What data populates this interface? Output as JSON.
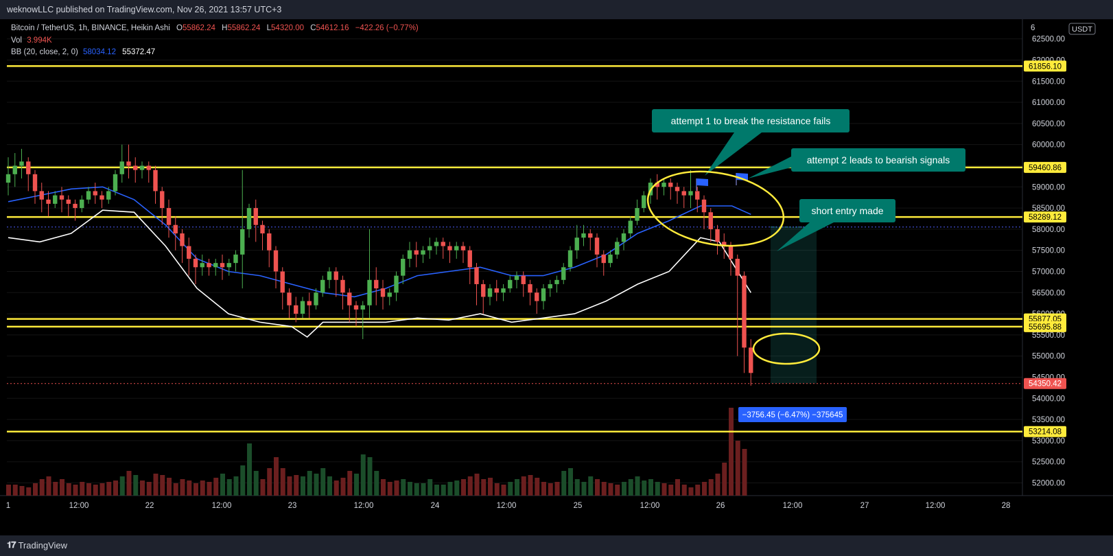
{
  "header": {
    "published": "weknowLLC published on TradingView.com, Nov 26, 2021 13:57 UTC+3"
  },
  "footer": {
    "brand": "TradingView"
  },
  "legend": {
    "symbol": "Bitcoin / TetherUS, 1h, BINANCE, Heikin Ashi",
    "o_label": "O",
    "o_value": "55862.24",
    "h_label": "H",
    "h_value": "55862.24",
    "l_label": "L",
    "l_value": "54320.00",
    "c_label": "C",
    "c_value": "54612.16",
    "change": "−422.26 (−0.77%)",
    "vol_label": "Vol",
    "vol_value": "3.994K",
    "bb_label": "BB (20, close, 2, 0)",
    "bb_value1": "58034.12",
    "bb_value2": "55372.47"
  },
  "currency": "USDT",
  "colors": {
    "background": "#000000",
    "up": "#26a69a",
    "up_body": "#4caf50",
    "down": "#ef5350",
    "bb_basis": "#2962ff",
    "bb_lower": "#ffffff",
    "level": "#ffeb3b",
    "teal_callout": "#00796b",
    "flag": "#2962ff"
  },
  "chart_data": {
    "type": "candlestick",
    "ylim": [
      51700,
      62900
    ],
    "y_ticks": [
      52000,
      52500,
      53000,
      53500,
      54000,
      54500,
      55000,
      55500,
      56000,
      56500,
      57000,
      57500,
      58000,
      58500,
      59000,
      59500,
      60000,
      60500,
      61000,
      61500,
      62000,
      62500
    ],
    "x_ticks": [
      "1",
      "12:00",
      "22",
      "12:00",
      "23",
      "12:00",
      "24",
      "12:00",
      "25",
      "12:00",
      "26",
      "12:00",
      "27",
      "12:00",
      "28"
    ],
    "levels": [
      "61856.10",
      "59460.86",
      "58289.12",
      "55877.05",
      "55695.88",
      "53214.08"
    ],
    "last_price": "54350.42",
    "annotations": [
      "attempt 1 to break the resistance fails",
      "attempt 2 leads to bearish signals",
      "short entry made"
    ],
    "measure_label": "−3756.45 (−6.47%) −375645",
    "candles": [
      [
        59100,
        59700,
        59300,
        58800
      ],
      [
        59300,
        59800,
        59500,
        59000
      ],
      [
        59500,
        59900,
        59600,
        59200
      ],
      [
        59600,
        59700,
        59300,
        58900
      ],
      [
        59300,
        59400,
        58900,
        58600
      ],
      [
        58900,
        59100,
        58700,
        58400
      ],
      [
        58700,
        58900,
        58600,
        58300
      ],
      [
        58600,
        58900,
        58800,
        58500
      ],
      [
        58800,
        59000,
        58700,
        58400
      ],
      [
        58700,
        58800,
        58600,
        58300
      ],
      [
        58600,
        58700,
        58500,
        58200
      ],
      [
        58500,
        58800,
        58700,
        58400
      ],
      [
        58700,
        59000,
        58900,
        58600
      ],
      [
        58900,
        59100,
        58800,
        58600
      ],
      [
        58800,
        58900,
        58700,
        58500
      ],
      [
        58700,
        59000,
        58900,
        58600
      ],
      [
        58900,
        59400,
        59300,
        58800
      ],
      [
        59300,
        60000,
        59600,
        59100
      ],
      [
        59600,
        60000,
        59500,
        59200
      ],
      [
        59500,
        59700,
        59400,
        59100
      ],
      [
        59400,
        59600,
        59500,
        59200
      ],
      [
        59500,
        59600,
        59400,
        59100
      ],
      [
        59400,
        59500,
        58900,
        58600
      ],
      [
        58900,
        59000,
        58500,
        58100
      ],
      [
        58500,
        58700,
        58100,
        57800
      ],
      [
        58100,
        58300,
        57900,
        57500
      ],
      [
        57900,
        58000,
        57600,
        57200
      ],
      [
        57600,
        57800,
        57300,
        56900
      ],
      [
        57300,
        57400,
        57100,
        56700
      ],
      [
        57100,
        57400,
        57200,
        56900
      ],
      [
        57200,
        57300,
        57100,
        56900
      ],
      [
        57100,
        57300,
        57200,
        56900
      ],
      [
        57200,
        57400,
        57100,
        56800
      ],
      [
        57100,
        57300,
        57200,
        56900
      ],
      [
        57200,
        57500,
        57400,
        57000
      ],
      [
        57400,
        59400,
        58000,
        56600
      ],
      [
        58000,
        58600,
        58500,
        57800
      ],
      [
        58500,
        58700,
        58100,
        57700
      ],
      [
        58100,
        58200,
        57900,
        57500
      ],
      [
        57900,
        58000,
        57500,
        57100
      ],
      [
        57500,
        57600,
        57000,
        56600
      ],
      [
        57000,
        57100,
        56500,
        56100
      ],
      [
        56500,
        56600,
        56200,
        55900
      ],
      [
        56200,
        56400,
        56000,
        55800
      ],
      [
        56000,
        56400,
        56300,
        55900
      ],
      [
        56300,
        56500,
        56200,
        55900
      ],
      [
        56200,
        56600,
        56500,
        56100
      ],
      [
        56500,
        56900,
        56800,
        56400
      ],
      [
        56800,
        57100,
        57000,
        56600
      ],
      [
        57000,
        57100,
        56800,
        56400
      ],
      [
        56800,
        56900,
        56500,
        56100
      ],
      [
        56500,
        56600,
        56200,
        55800
      ],
      [
        56200,
        56300,
        56100,
        55700
      ],
      [
        56100,
        56300,
        56200,
        55400
      ],
      [
        56200,
        58000,
        56800,
        55900
      ],
      [
        56800,
        57100,
        56600,
        56200
      ],
      [
        56600,
        56800,
        56400,
        56100
      ],
      [
        56400,
        56600,
        56500,
        56200
      ],
      [
        56500,
        57000,
        56900,
        56300
      ],
      [
        56900,
        57400,
        57300,
        56700
      ],
      [
        57300,
        57700,
        57500,
        57100
      ],
      [
        57500,
        57700,
        57400,
        57100
      ],
      [
        57400,
        57600,
        57500,
        57200
      ],
      [
        57500,
        57800,
        57600,
        57300
      ],
      [
        57600,
        57800,
        57700,
        57400
      ],
      [
        57700,
        57800,
        57600,
        57300
      ],
      [
        57600,
        57700,
        57500,
        57200
      ],
      [
        57500,
        57700,
        57600,
        57300
      ],
      [
        57600,
        57700,
        57500,
        57200
      ],
      [
        57500,
        57600,
        57100,
        56700
      ],
      [
        57100,
        57200,
        56700,
        56200
      ],
      [
        56700,
        56800,
        56400,
        56000
      ],
      [
        56400,
        56700,
        56600,
        56200
      ],
      [
        56600,
        56800,
        56500,
        56300
      ],
      [
        56500,
        56700,
        56600,
        56300
      ],
      [
        56600,
        56900,
        56800,
        56500
      ],
      [
        56800,
        57000,
        56900,
        56600
      ],
      [
        56900,
        57000,
        56700,
        56400
      ],
      [
        56700,
        56800,
        56500,
        56200
      ],
      [
        56500,
        56600,
        56300,
        56000
      ],
      [
        56300,
        56700,
        56600,
        56100
      ],
      [
        56600,
        56800,
        56700,
        56400
      ],
      [
        56700,
        56900,
        56800,
        56500
      ],
      [
        56800,
        57200,
        57100,
        56700
      ],
      [
        57100,
        57600,
        57500,
        57000
      ],
      [
        57500,
        58100,
        57800,
        57300
      ],
      [
        57800,
        58100,
        57900,
        57600
      ],
      [
        57900,
        58000,
        57800,
        57500
      ],
      [
        57800,
        57900,
        57400,
        57100
      ],
      [
        57400,
        57500,
        57200,
        56900
      ],
      [
        57200,
        57500,
        57400,
        57100
      ],
      [
        57400,
        57800,
        57700,
        57300
      ],
      [
        57700,
        58000,
        57900,
        57500
      ],
      [
        57900,
        58300,
        58200,
        57800
      ],
      [
        58200,
        58700,
        58500,
        58100
      ],
      [
        58500,
        58900,
        58800,
        58400
      ],
      [
        58800,
        59200,
        59100,
        58600
      ],
      [
        59100,
        59300,
        59000,
        58700
      ],
      [
        59000,
        59200,
        59100,
        58800
      ],
      [
        59100,
        59200,
        59000,
        58700
      ],
      [
        59000,
        59100,
        58900,
        58600
      ],
      [
        58900,
        59000,
        58800,
        58500
      ],
      [
        58800,
        59400,
        58900,
        58500
      ],
      [
        58900,
        59000,
        58700,
        58400
      ],
      [
        58700,
        58800,
        58400,
        58000
      ],
      [
        58400,
        58500,
        58000,
        57700
      ],
      [
        58000,
        58100,
        57700,
        57400
      ],
      [
        57700,
        57900,
        57600,
        57300
      ],
      [
        57600,
        57700,
        57300,
        56900
      ],
      [
        57300,
        57400,
        56900,
        55000
      ],
      [
        56900,
        57000,
        55200,
        54600
      ],
      [
        55200,
        55400,
        54600,
        54300
      ]
    ],
    "bb_basis": [
      [
        0,
        58650
      ],
      [
        10,
        58800
      ],
      [
        20,
        58950
      ],
      [
        30,
        59000
      ],
      [
        40,
        58700
      ],
      [
        50,
        58100
      ],
      [
        60,
        57300
      ],
      [
        70,
        57000
      ],
      [
        80,
        56900
      ],
      [
        90,
        56700
      ],
      [
        100,
        56500
      ],
      [
        110,
        56400
      ],
      [
        120,
        56600
      ],
      [
        130,
        56900
      ],
      [
        140,
        57000
      ],
      [
        150,
        57100
      ],
      [
        160,
        56900
      ],
      [
        170,
        56900
      ],
      [
        180,
        57100
      ],
      [
        190,
        57400
      ],
      [
        200,
        57900
      ],
      [
        210,
        58200
      ],
      [
        220,
        58550
      ],
      [
        230,
        58550
      ],
      [
        236,
        58350
      ]
    ],
    "bb_lower": [
      [
        0,
        57800
      ],
      [
        10,
        57700
      ],
      [
        20,
        57900
      ],
      [
        30,
        58450
      ],
      [
        40,
        58400
      ],
      [
        50,
        57600
      ],
      [
        60,
        56600
      ],
      [
        70,
        56000
      ],
      [
        80,
        55800
      ],
      [
        90,
        55700
      ],
      [
        95,
        55450
      ],
      [
        100,
        55800
      ],
      [
        110,
        55800
      ],
      [
        120,
        55800
      ],
      [
        130,
        55900
      ],
      [
        140,
        55850
      ],
      [
        150,
        56000
      ],
      [
        160,
        55800
      ],
      [
        170,
        55900
      ],
      [
        180,
        56000
      ],
      [
        190,
        56300
      ],
      [
        200,
        56700
      ],
      [
        210,
        57000
      ],
      [
        220,
        57800
      ],
      [
        226,
        57700
      ],
      [
        236,
        56500
      ]
    ],
    "volume": [
      [
        8,
        2
      ],
      [
        8,
        3
      ],
      [
        7,
        2
      ],
      [
        6,
        2
      ],
      [
        9,
        2
      ],
      [
        12,
        2
      ],
      [
        14,
        3
      ],
      [
        10,
        2
      ],
      [
        12,
        2
      ],
      [
        9,
        2
      ],
      [
        8,
        2
      ],
      [
        10,
        2
      ],
      [
        9,
        2
      ],
      [
        8,
        2
      ],
      [
        9,
        2
      ],
      [
        10,
        2
      ],
      [
        11,
        2
      ],
      [
        14,
        1
      ],
      [
        18,
        2
      ],
      [
        15,
        1
      ],
      [
        11,
        2
      ],
      [
        10,
        2
      ],
      [
        16,
        2
      ],
      [
        15,
        2
      ],
      [
        13,
        2
      ],
      [
        9,
        2
      ],
      [
        12,
        2
      ],
      [
        11,
        2
      ],
      [
        9,
        2
      ],
      [
        11,
        2
      ],
      [
        10,
        2
      ],
      [
        13,
        2
      ],
      [
        16,
        1
      ],
      [
        12,
        1
      ],
      [
        14,
        1
      ],
      [
        22,
        1
      ],
      [
        38,
        1
      ],
      [
        18,
        1
      ],
      [
        12,
        2
      ],
      [
        20,
        2
      ],
      [
        28,
        2
      ],
      [
        20,
        2
      ],
      [
        14,
        2
      ],
      [
        15,
        2
      ],
      [
        14,
        1
      ],
      [
        18,
        1
      ],
      [
        16,
        1
      ],
      [
        20,
        1
      ],
      [
        14,
        1
      ],
      [
        11,
        2
      ],
      [
        13,
        2
      ],
      [
        18,
        2
      ],
      [
        16,
        1
      ],
      [
        30,
        1
      ],
      [
        28,
        1
      ],
      [
        18,
        1
      ],
      [
        12,
        2
      ],
      [
        10,
        2
      ],
      [
        11,
        2
      ],
      [
        12,
        1
      ],
      [
        10,
        1
      ],
      [
        9,
        1
      ],
      [
        9,
        1
      ],
      [
        12,
        1
      ],
      [
        8,
        1
      ],
      [
        8,
        1
      ],
      [
        10,
        1
      ],
      [
        11,
        1
      ],
      [
        12,
        2
      ],
      [
        14,
        2
      ],
      [
        16,
        2
      ],
      [
        12,
        2
      ],
      [
        13,
        2
      ],
      [
        9,
        2
      ],
      [
        8,
        2
      ],
      [
        10,
        1
      ],
      [
        12,
        1
      ],
      [
        14,
        2
      ],
      [
        15,
        2
      ],
      [
        13,
        2
      ],
      [
        10,
        2
      ],
      [
        9,
        2
      ],
      [
        10,
        2
      ],
      [
        18,
        1
      ],
      [
        20,
        1
      ],
      [
        12,
        1
      ],
      [
        10,
        1
      ],
      [
        14,
        1
      ],
      [
        12,
        2
      ],
      [
        10,
        2
      ],
      [
        9,
        2
      ],
      [
        8,
        2
      ],
      [
        10,
        1
      ],
      [
        12,
        1
      ],
      [
        14,
        1
      ],
      [
        11,
        1
      ],
      [
        12,
        1
      ],
      [
        10,
        1
      ],
      [
        9,
        2
      ],
      [
        8,
        2
      ],
      [
        12,
        2
      ],
      [
        8,
        2
      ],
      [
        6,
        2
      ],
      [
        8,
        2
      ],
      [
        10,
        2
      ],
      [
        12,
        2
      ],
      [
        16,
        2
      ],
      [
        24,
        2
      ],
      [
        64,
        2
      ],
      [
        40,
        2
      ],
      [
        34,
        2
      ]
    ]
  }
}
